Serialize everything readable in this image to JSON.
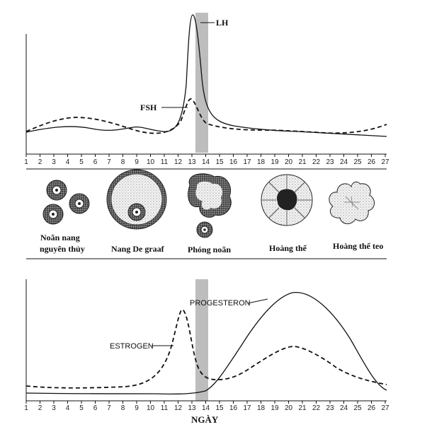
{
  "hormone_labels": {
    "lh": "LH",
    "fsh": "FSH"
  },
  "days": [
    "1",
    "2",
    "3",
    "4",
    "5",
    "6",
    "7",
    "8",
    "9",
    "10",
    "11",
    "12",
    "13",
    "14",
    "15",
    "16",
    "17",
    "18",
    "19",
    "20",
    "21",
    "22",
    "23",
    "24",
    "25",
    "26",
    "27"
  ],
  "follicle_stages": {
    "primordial_line1": "Noãn nang",
    "primordial_line2": "nguyên thủy",
    "graafian": "Nang De graaf",
    "ovulation": "Phóng noãn",
    "corpus_luteum": "Hoàng thể",
    "corpus_albicans": "Hoàng thể teo"
  },
  "ovarian_labels": {
    "progesterone": "PROGESTERON",
    "estrogen": "ESTROGEN"
  },
  "x_axis_title": "NGÀY",
  "highlight_day": "14"
}
